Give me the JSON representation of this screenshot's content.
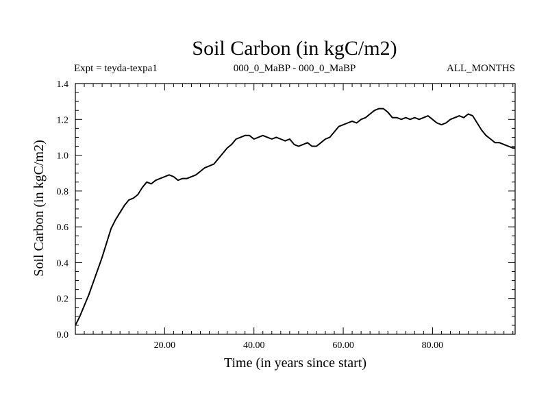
{
  "chart_data": {
    "type": "line",
    "title": "Soil Carbon (in kgC/m2)",
    "subtitle_left": "Expt = teyda-texpa1",
    "subtitle_center": "000_0_MaBP - 000_0_MaBP",
    "subtitle_right": "ALL_MONTHS",
    "xlabel": "Time (in years since start)",
    "ylabel": "Soil Carbon (in kgC/m2)",
    "xlim": [
      0,
      98.5
    ],
    "ylim": [
      0,
      1.4
    ],
    "x_ticks": [
      {
        "value": 20,
        "label": "20.00"
      },
      {
        "value": 40,
        "label": "40.00"
      },
      {
        "value": 60,
        "label": "60.00"
      },
      {
        "value": 80,
        "label": "80.00"
      }
    ],
    "y_ticks": [
      {
        "value": 0.0,
        "label": "0.0"
      },
      {
        "value": 0.2,
        "label": "0.2"
      },
      {
        "value": 0.4,
        "label": "0.4"
      },
      {
        "value": 0.6,
        "label": "0.6"
      },
      {
        "value": 0.8,
        "label": "0.8"
      },
      {
        "value": 1.0,
        "label": "1.0"
      },
      {
        "value": 1.2,
        "label": "1.2"
      },
      {
        "value": 1.4,
        "label": "1.4"
      }
    ],
    "series": [
      {
        "name": "Soil Carbon",
        "color": "#000000",
        "points": [
          [
            0.0,
            0.05
          ],
          [
            1.0,
            0.1
          ],
          [
            2.0,
            0.16
          ],
          [
            3.0,
            0.22
          ],
          [
            4.0,
            0.29
          ],
          [
            5.0,
            0.36
          ],
          [
            6.0,
            0.43
          ],
          [
            7.0,
            0.51
          ],
          [
            8.0,
            0.59
          ],
          [
            9.0,
            0.64
          ],
          [
            10.0,
            0.68
          ],
          [
            11.0,
            0.72
          ],
          [
            12.0,
            0.75
          ],
          [
            13.0,
            0.76
          ],
          [
            14.0,
            0.78
          ],
          [
            15.0,
            0.82
          ],
          [
            16.0,
            0.85
          ],
          [
            17.0,
            0.84
          ],
          [
            18.0,
            0.86
          ],
          [
            19.0,
            0.87
          ],
          [
            20.0,
            0.88
          ],
          [
            21.0,
            0.89
          ],
          [
            22.0,
            0.88
          ],
          [
            23.0,
            0.86
          ],
          [
            24.0,
            0.87
          ],
          [
            25.0,
            0.87
          ],
          [
            26.0,
            0.88
          ],
          [
            27.0,
            0.89
          ],
          [
            28.0,
            0.91
          ],
          [
            29.0,
            0.93
          ],
          [
            30.0,
            0.94
          ],
          [
            31.0,
            0.95
          ],
          [
            32.0,
            0.98
          ],
          [
            33.0,
            1.01
          ],
          [
            34.0,
            1.04
          ],
          [
            35.0,
            1.06
          ],
          [
            36.0,
            1.09
          ],
          [
            37.0,
            1.1
          ],
          [
            38.0,
            1.11
          ],
          [
            39.0,
            1.11
          ],
          [
            40.0,
            1.09
          ],
          [
            41.0,
            1.1
          ],
          [
            42.0,
            1.11
          ],
          [
            43.0,
            1.1
          ],
          [
            44.0,
            1.09
          ],
          [
            45.0,
            1.1
          ],
          [
            46.0,
            1.09
          ],
          [
            47.0,
            1.08
          ],
          [
            48.0,
            1.09
          ],
          [
            49.0,
            1.06
          ],
          [
            50.0,
            1.05
          ],
          [
            51.0,
            1.06
          ],
          [
            52.0,
            1.07
          ],
          [
            53.0,
            1.05
          ],
          [
            54.0,
            1.05
          ],
          [
            55.0,
            1.07
          ],
          [
            56.0,
            1.09
          ],
          [
            57.0,
            1.1
          ],
          [
            58.0,
            1.13
          ],
          [
            59.0,
            1.16
          ],
          [
            60.0,
            1.17
          ],
          [
            61.0,
            1.18
          ],
          [
            62.0,
            1.19
          ],
          [
            63.0,
            1.18
          ],
          [
            64.0,
            1.2
          ],
          [
            65.0,
            1.21
          ],
          [
            66.0,
            1.23
          ],
          [
            67.0,
            1.25
          ],
          [
            68.0,
            1.26
          ],
          [
            69.0,
            1.26
          ],
          [
            70.0,
            1.24
          ],
          [
            71.0,
            1.21
          ],
          [
            72.0,
            1.21
          ],
          [
            73.0,
            1.2
          ],
          [
            74.0,
            1.21
          ],
          [
            75.0,
            1.2
          ],
          [
            76.0,
            1.21
          ],
          [
            77.0,
            1.2
          ],
          [
            78.0,
            1.21
          ],
          [
            79.0,
            1.22
          ],
          [
            80.0,
            1.2
          ],
          [
            81.0,
            1.18
          ],
          [
            82.0,
            1.17
          ],
          [
            83.0,
            1.18
          ],
          [
            84.0,
            1.2
          ],
          [
            85.0,
            1.21
          ],
          [
            86.0,
            1.22
          ],
          [
            87.0,
            1.21
          ],
          [
            88.0,
            1.23
          ],
          [
            89.0,
            1.22
          ],
          [
            90.0,
            1.18
          ],
          [
            91.0,
            1.14
          ],
          [
            92.0,
            1.11
          ],
          [
            93.0,
            1.09
          ],
          [
            94.0,
            1.07
          ],
          [
            95.0,
            1.07
          ],
          [
            96.0,
            1.06
          ],
          [
            97.0,
            1.05
          ],
          [
            98.0,
            1.04
          ],
          [
            98.5,
            1.04
          ]
        ]
      }
    ],
    "grid": false,
    "legend": "none"
  }
}
